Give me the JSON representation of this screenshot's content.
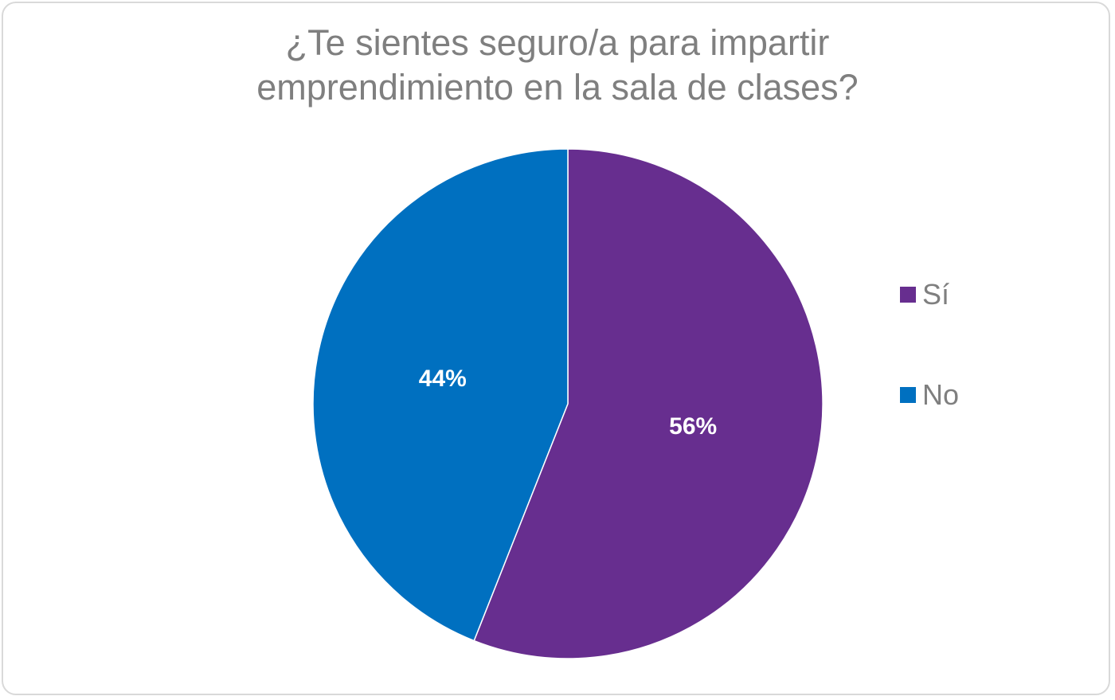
{
  "chart_data": {
    "type": "pie",
    "title_lines": [
      "¿Te sientes seguro/a para impartir",
      "emprendimiento en la sala de clases?"
    ],
    "categories": [
      "Sí",
      "No"
    ],
    "values": [
      56,
      44
    ],
    "data_labels": [
      "56%",
      "44%"
    ],
    "colors": [
      "#672e8f",
      "#0070c0"
    ],
    "legend_position": "right"
  }
}
